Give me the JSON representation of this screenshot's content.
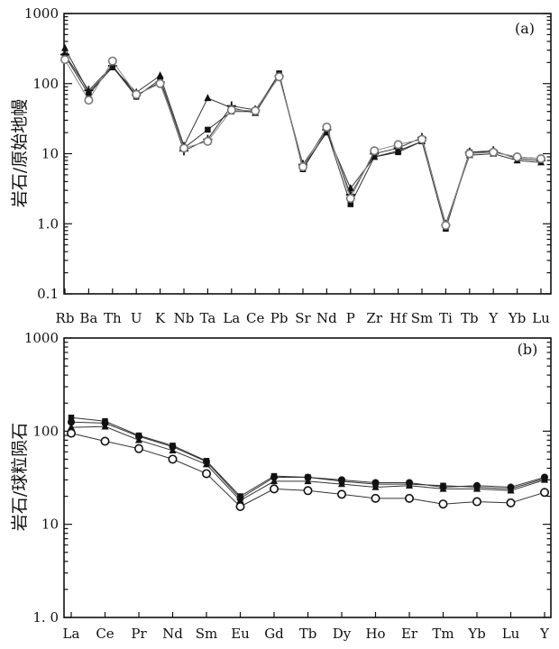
{
  "chart_data": [
    {
      "type": "line",
      "title": "",
      "panel_label": "(a)",
      "ylabel": "岩石/原始地幔",
      "xlabel": "",
      "yscale": "log",
      "ylim": [
        0.1,
        1000
      ],
      "y_ticks": [
        "0.1",
        "1.0",
        "10",
        "100",
        "1000"
      ],
      "grid": false,
      "categories": [
        "Rb",
        "Ba",
        "Th",
        "U",
        "K",
        "Nb",
        "Ta",
        "La",
        "Ce",
        "Pb",
        "Sr",
        "Nd",
        "P",
        "Zr",
        "Hf",
        "Sm",
        "Ti",
        "Tb",
        "Y",
        "Yb",
        "Lu"
      ],
      "series": [
        {
          "marker": "square-filled",
          "color": "#111111",
          "values": [
            250,
            70,
            175,
            65,
            115,
            12,
            22,
            40,
            40,
            140,
            6,
            21,
            1.9,
            9,
            10.5,
            15,
            0.85,
            10.5,
            10.5,
            9,
            8.5
          ]
        },
        {
          "marker": "triangle-filled",
          "color": "#111111",
          "values": [
            320,
            75,
            170,
            75,
            130,
            13,
            62,
            45,
            38,
            130,
            6.5,
            20,
            3.2,
            9,
            11,
            15,
            1.0,
            9.5,
            10,
            8,
            7.5
          ]
        },
        {
          "marker": "cross",
          "color": "#111111",
          "values": [
            260,
            80,
            180,
            68,
            105,
            11,
            16,
            48,
            42,
            128,
            7,
            22,
            2.6,
            10,
            12,
            17,
            0.95,
            10.5,
            11,
            8.5,
            8
          ]
        },
        {
          "marker": "circle-open",
          "color": "#777777",
          "values": [
            220,
            58,
            210,
            70,
            100,
            12,
            15,
            42,
            41,
            125,
            6.5,
            24,
            2.3,
            11,
            13.5,
            16,
            0.95,
            10,
            10.5,
            9,
            8.5
          ]
        }
      ]
    },
    {
      "type": "line",
      "title": "",
      "panel_label": "(b)",
      "ylabel": "岩石/球粒陨石",
      "xlabel": "",
      "yscale": "log",
      "ylim": [
        1,
        1000
      ],
      "y_ticks": [
        "1. 0",
        "10",
        "100",
        "1000"
      ],
      "grid": false,
      "categories": [
        "La",
        "Ce",
        "Pr",
        "Nd",
        "Sm",
        "Eu",
        "Gd",
        "Tb",
        "Dy",
        "Ho",
        "Er",
        "Tm",
        "Yb",
        "Lu",
        "Y"
      ],
      "series": [
        {
          "marker": "square-filled",
          "color": "#111111",
          "values": [
            140,
            128,
            90,
            70,
            48,
            20,
            33,
            32,
            29,
            27,
            27,
            26,
            25,
            24,
            31
          ]
        },
        {
          "marker": "circle-filled",
          "color": "#111111",
          "values": [
            125,
            122,
            88,
            68,
            47,
            19,
            32,
            32,
            30,
            28,
            28,
            25,
            26,
            25,
            32
          ]
        },
        {
          "marker": "triangle-filled",
          "color": "#111111",
          "values": [
            110,
            112,
            80,
            62,
            44,
            18,
            29,
            29,
            27,
            25,
            26,
            24,
            24,
            23,
            30
          ]
        },
        {
          "marker": "circle-open",
          "color": "#111111",
          "values": [
            95,
            78,
            65,
            50,
            35,
            15.5,
            24,
            23,
            21,
            19,
            19,
            16.5,
            17.5,
            17,
            22
          ]
        }
      ]
    }
  ]
}
